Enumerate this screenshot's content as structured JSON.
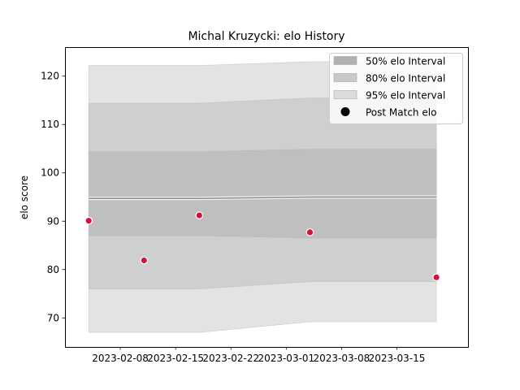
{
  "chart_data": {
    "type": "area",
    "title": "Michal Kruzycki: elo History",
    "xlabel": "",
    "ylabel": "elo score",
    "x_dates": [
      "2023-02-04",
      "2023-02-11",
      "2023-02-18",
      "2023-03-04",
      "2023-03-20"
    ],
    "xlim": [
      "2023-02-01",
      "2023-03-24"
    ],
    "ylim": [
      64.0,
      126.0
    ],
    "x_ticks": [
      "2023-02-08",
      "2023-02-15",
      "2023-02-22",
      "2023-03-01",
      "2023-03-08",
      "2023-03-15"
    ],
    "y_ticks": [
      70,
      80,
      90,
      100,
      110,
      120
    ],
    "series": [
      {
        "name": "95% elo Interval",
        "lower": [
          67.0,
          67.0,
          67.0,
          69.2,
          69.2
        ],
        "upper": [
          122.2,
          122.2,
          122.2,
          123.0,
          123.0
        ]
      },
      {
        "name": "80% elo Interval",
        "lower": [
          76.0,
          76.0,
          76.0,
          77.5,
          77.5
        ],
        "upper": [
          114.4,
          114.4,
          114.4,
          115.5,
          115.5
        ]
      },
      {
        "name": "50% elo Interval",
        "lower": [
          87.0,
          87.0,
          87.0,
          86.5,
          86.5
        ],
        "upper": [
          104.4,
          104.4,
          104.4,
          104.9,
          104.9
        ]
      }
    ],
    "mean": [
      94.7,
      94.7,
      94.7,
      95.0,
      95.0
    ],
    "points": {
      "name": "Post Match elo",
      "x": [
        "2023-02-04",
        "2023-02-11",
        "2023-02-18",
        "2023-03-04",
        "2023-03-20"
      ],
      "y": [
        90.1,
        81.9,
        91.2,
        87.7,
        78.4
      ]
    },
    "legend": {
      "placement": "top-right",
      "entries": [
        "50% elo Interval",
        "80% elo Interval",
        "95% elo Interval",
        "Post Match elo"
      ]
    },
    "grid": false,
    "colors": {
      "band_95": "#e3e3e3",
      "band_80": "#cfcfcf",
      "band_50": "#bfbfbf",
      "legend_50": "#b0b0b0",
      "legend_80": "#c8c8c8",
      "legend_95": "#dcdcdc",
      "mean_line": "#8c8c8c",
      "point": "#d0143c"
    }
  }
}
